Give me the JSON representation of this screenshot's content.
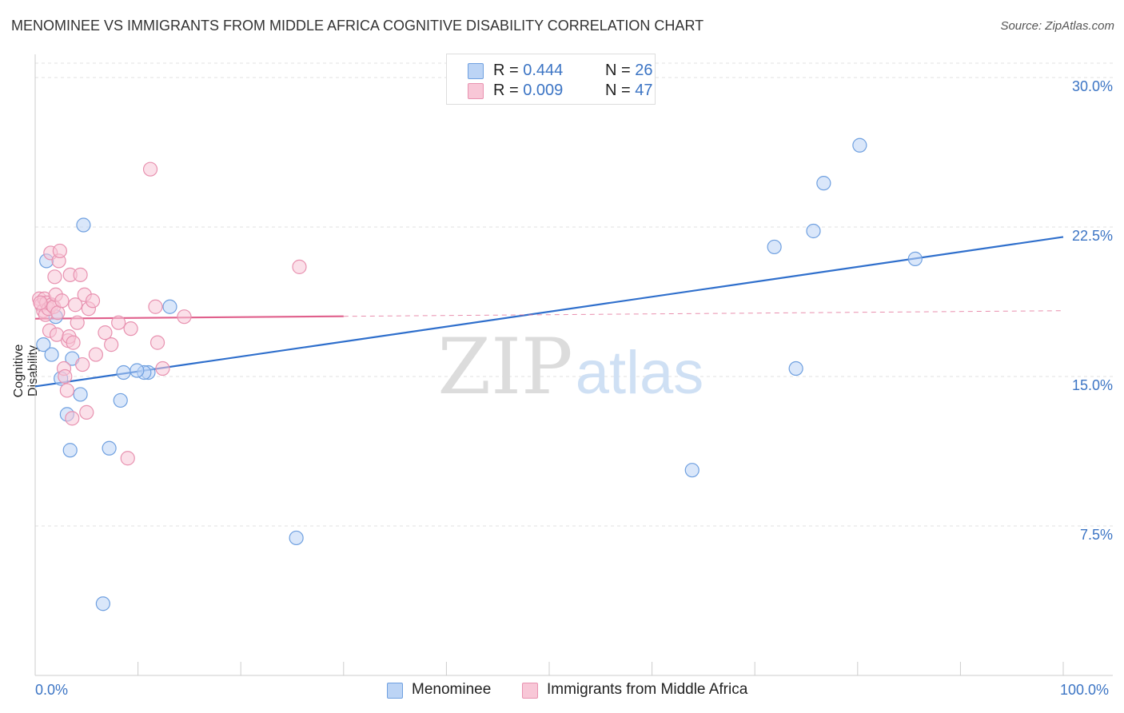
{
  "title": "MENOMINEE VS IMMIGRANTS FROM MIDDLE AFRICA COGNITIVE DISABILITY CORRELATION CHART",
  "source": "Source: ZipAtlas.com",
  "watermark": {
    "zip": "ZIP",
    "atlas": "atlas"
  },
  "legend": {
    "series": [
      {
        "r_label": "R = ",
        "r_value": "0.444",
        "n_label": "N = ",
        "n_value": "26",
        "color": "#6fa0e0",
        "fill": "#bcd4f5"
      },
      {
        "r_label": "R = ",
        "r_value": "0.009",
        "n_label": "N = ",
        "n_value": "47",
        "color": "#e892b0",
        "fill": "#f8c7d7"
      }
    ]
  },
  "bottom_legend": [
    "Menominee",
    "Immigrants from Middle Africa"
  ],
  "chart_data": {
    "type": "scatter",
    "title": "MENOMINEE VS IMMIGRANTS FROM MIDDLE AFRICA COGNITIVE DISABILITY CORRELATION CHART",
    "xlabel": "",
    "ylabel": "Cognitive Disability",
    "xlim": [
      0,
      100
    ],
    "ylim": [
      0,
      31.5
    ],
    "x_tick_labels": [
      "0.0%",
      "100.0%"
    ],
    "y_ticks": [
      7.5,
      15.0,
      22.5,
      30.0
    ],
    "y_tick_labels": [
      "7.5%",
      "15.0%",
      "22.5%",
      "30.0%"
    ],
    "grid": "horizontal dashed",
    "legend_position": "top-center",
    "series": [
      {
        "name": "Menominee",
        "color": "#6fa0e0",
        "fill": "#bcd4f5",
        "line_color": "#2f6fcc",
        "trend": {
          "x": [
            0,
            100
          ],
          "y": [
            14.5,
            22.0
          ],
          "dashed_from": null
        },
        "points": [
          [
            0.8,
            16.6
          ],
          [
            1.1,
            20.8
          ],
          [
            1.6,
            16.1
          ],
          [
            2.0,
            18.0
          ],
          [
            2.5,
            14.9
          ],
          [
            3.1,
            13.1
          ],
          [
            3.4,
            11.3
          ],
          [
            3.6,
            15.9
          ],
          [
            4.4,
            14.1
          ],
          [
            4.7,
            22.6
          ],
          [
            6.6,
            3.6
          ],
          [
            7.2,
            11.4
          ],
          [
            8.3,
            13.8
          ],
          [
            8.6,
            15.2
          ],
          [
            11.0,
            15.2
          ],
          [
            10.6,
            15.2
          ],
          [
            13.1,
            18.5
          ],
          [
            25.4,
            6.9
          ],
          [
            63.9,
            10.3
          ],
          [
            71.9,
            21.5
          ],
          [
            74.0,
            15.4
          ],
          [
            75.7,
            22.3
          ],
          [
            76.7,
            24.7
          ],
          [
            80.2,
            26.6
          ],
          [
            85.6,
            20.9
          ],
          [
            9.9,
            15.3
          ]
        ]
      },
      {
        "name": "Immigrants from Middle Africa",
        "color": "#e892b0",
        "fill": "#f8c7d7",
        "line_color": "#e0608c",
        "trend": {
          "x": [
            0,
            100
          ],
          "y": [
            17.9,
            18.3
          ],
          "dashed_from": 30
        },
        "points": [
          [
            0.4,
            18.9
          ],
          [
            0.6,
            18.6
          ],
          [
            0.8,
            18.3
          ],
          [
            0.9,
            18.9
          ],
          [
            1.0,
            18.1
          ],
          [
            1.1,
            18.7
          ],
          [
            1.3,
            18.4
          ],
          [
            1.4,
            17.3
          ],
          [
            1.5,
            21.2
          ],
          [
            1.6,
            18.6
          ],
          [
            1.8,
            18.5
          ],
          [
            1.9,
            20.0
          ],
          [
            2.0,
            19.1
          ],
          [
            2.1,
            17.1
          ],
          [
            2.2,
            18.2
          ],
          [
            2.3,
            20.8
          ],
          [
            2.4,
            21.3
          ],
          [
            2.6,
            18.8
          ],
          [
            2.8,
            15.4
          ],
          [
            2.9,
            15.0
          ],
          [
            3.1,
            14.3
          ],
          [
            3.2,
            16.8
          ],
          [
            3.3,
            17.0
          ],
          [
            3.4,
            20.1
          ],
          [
            3.6,
            12.9
          ],
          [
            3.7,
            16.7
          ],
          [
            3.9,
            18.6
          ],
          [
            4.1,
            17.7
          ],
          [
            4.4,
            20.1
          ],
          [
            4.6,
            15.6
          ],
          [
            4.8,
            19.1
          ],
          [
            5.0,
            13.2
          ],
          [
            5.2,
            18.4
          ],
          [
            5.6,
            18.8
          ],
          [
            5.9,
            16.1
          ],
          [
            6.8,
            17.2
          ],
          [
            7.4,
            16.6
          ],
          [
            8.1,
            17.7
          ],
          [
            9.0,
            10.9
          ],
          [
            9.3,
            17.4
          ],
          [
            11.2,
            25.4
          ],
          [
            11.7,
            18.5
          ],
          [
            11.9,
            16.7
          ],
          [
            12.4,
            15.4
          ],
          [
            14.5,
            18.0
          ],
          [
            25.7,
            20.5
          ],
          [
            0.5,
            18.7
          ]
        ]
      }
    ]
  }
}
